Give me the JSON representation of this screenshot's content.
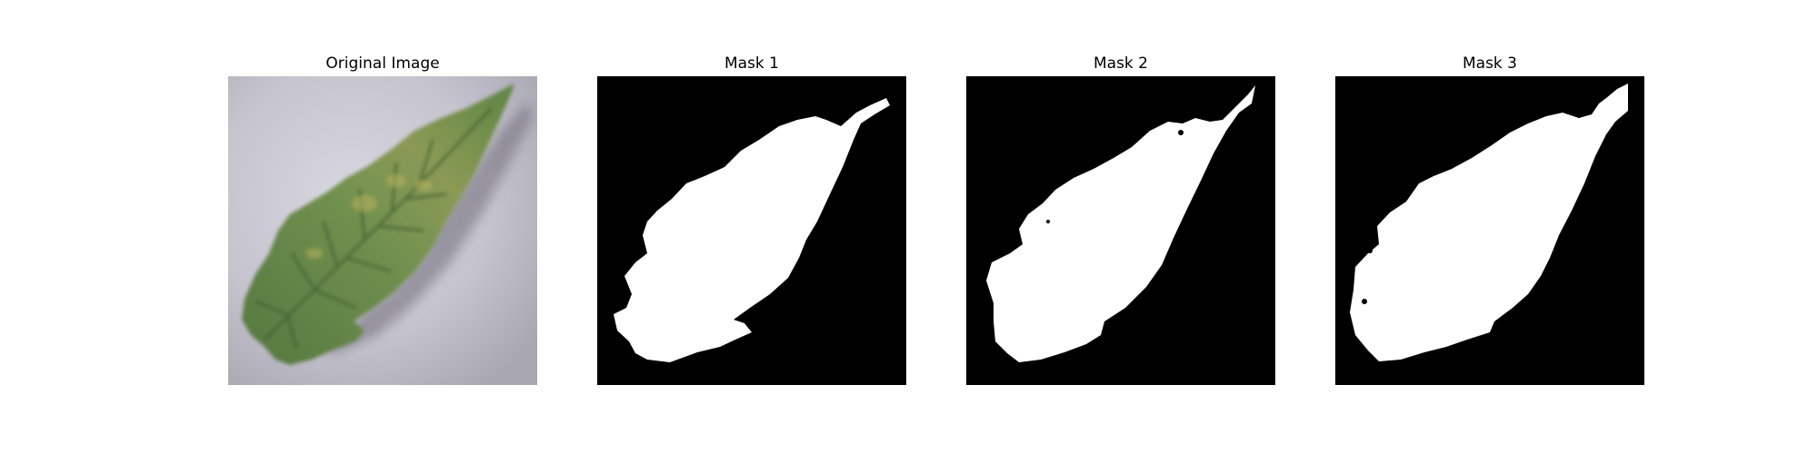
{
  "panels": [
    {
      "title": "Original Image"
    },
    {
      "title": "Mask 1"
    },
    {
      "title": "Mask 2"
    },
    {
      "title": "Mask 3"
    }
  ],
  "colors": {
    "mask_background": "#000000",
    "mask_foreground": "#ffffff",
    "leaf_green": "#6f8f4e",
    "leaf_dark": "#3f5f33",
    "leaf_yellow": "#b7b45c",
    "surface_gray": "#c8c6d0"
  }
}
